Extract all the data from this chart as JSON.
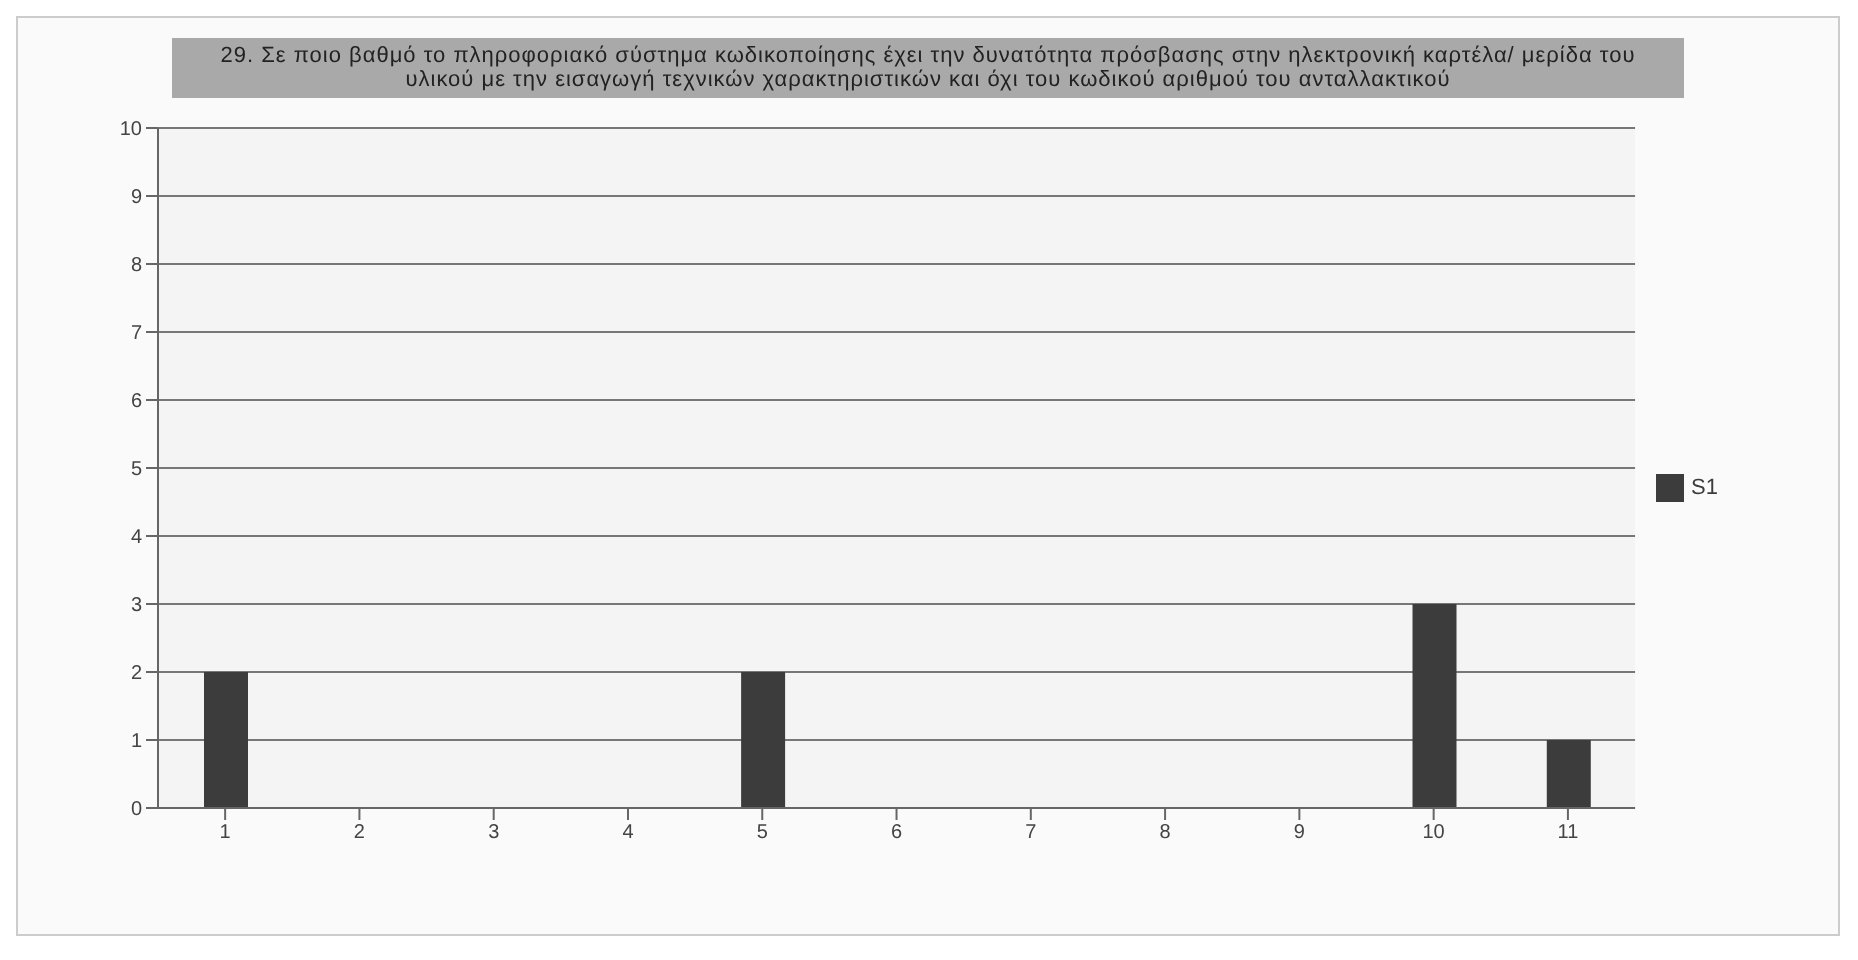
{
  "chart_data": {
    "type": "bar",
    "title": "29. Σε ποιο βαθμό το πληροφοριακό σύστημα κωδικοποίησης έχει την δυνατότητα πρόσβασης στην ηλεκτρονική καρτέλα/ μερίδα του υλικού με την εισαγωγή τεχνικών χαρακτηριστικών και όχι του κωδικού αριθμού του ανταλλακτικού",
    "categories": [
      "1",
      "2",
      "3",
      "4",
      "5",
      "6",
      "7",
      "8",
      "9",
      "10",
      "11"
    ],
    "series": [
      {
        "name": "S1",
        "color": "#3c3c3c",
        "values": [
          2,
          0,
          0,
          0,
          2,
          0,
          0,
          0,
          0,
          3,
          1
        ]
      }
    ],
    "ylim": [
      0,
      10
    ],
    "yticks": [
      0,
      1,
      2,
      3,
      4,
      5,
      6,
      7,
      8,
      9,
      10
    ],
    "grid": "y",
    "legend": "right"
  }
}
